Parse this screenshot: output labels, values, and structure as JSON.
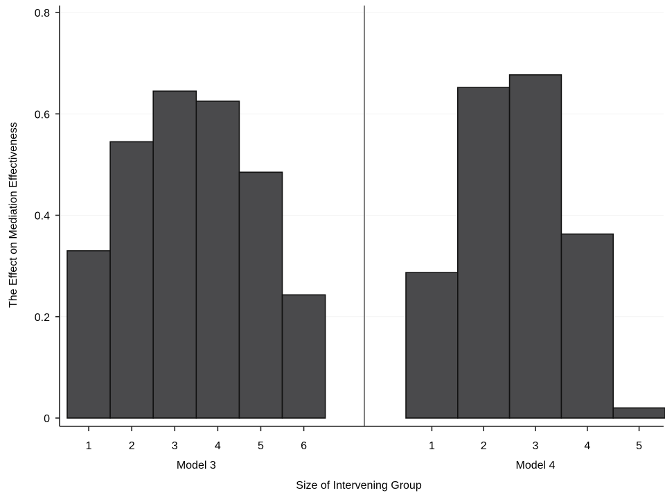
{
  "chart_data": {
    "type": "bar",
    "ylabel": "The Effect on Mediation Effectiveness",
    "xlabel": "Size of Intervening Group",
    "ylim": [
      0,
      0.8
    ],
    "yticks": [
      "0",
      "0.2",
      "0.4",
      "0.6",
      "0.8"
    ],
    "ytick_values": [
      0,
      0.2,
      0.4,
      0.6,
      0.8
    ],
    "grid": true,
    "bar_color": "#4a4a4c",
    "panels": [
      {
        "label": "Model 3",
        "categories": [
          "1",
          "2",
          "3",
          "4",
          "5",
          "6"
        ],
        "values": [
          0.33,
          0.545,
          0.645,
          0.625,
          0.485,
          0.243
        ]
      },
      {
        "label": "Model 4",
        "categories": [
          "1",
          "2",
          "3",
          "4",
          "5"
        ],
        "values": [
          0.287,
          0.652,
          0.677,
          0.363,
          0.02
        ]
      }
    ]
  }
}
